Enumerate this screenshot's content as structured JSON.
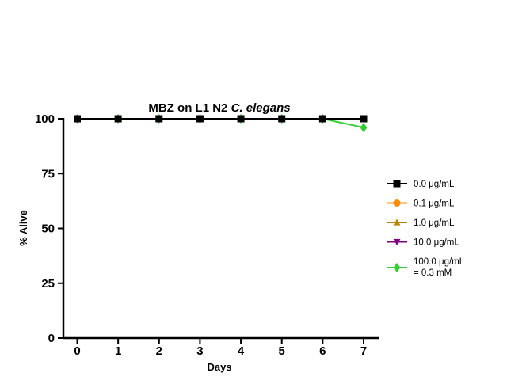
{
  "chart_data": {
    "type": "line",
    "title": "MBZ on L1 N2",
    "title_italic": "C. elegans",
    "xlabel": "Days",
    "ylabel": "% Alive",
    "x": [
      0,
      1,
      2,
      3,
      4,
      5,
      6,
      7
    ],
    "xlim": [
      0,
      7
    ],
    "ylim": [
      0,
      100
    ],
    "yticks": [
      0,
      25,
      50,
      75,
      100
    ],
    "grid": false,
    "legend_position": "right",
    "series": [
      {
        "name": "0.0 μg/mL",
        "color": "#000000",
        "marker": "square",
        "values": [
          100,
          100,
          100,
          100,
          100,
          100,
          100,
          100
        ]
      },
      {
        "name": "0.1 μg/mL",
        "color": "#ff8c00",
        "marker": "circle",
        "values": [
          100,
          100,
          100,
          100,
          100,
          100,
          100,
          100
        ]
      },
      {
        "name": "1.0 μg/mL",
        "color": "#b8860b",
        "marker": "triangle",
        "values": [
          100,
          100,
          100,
          100,
          100,
          100,
          100,
          100
        ]
      },
      {
        "name": "10.0 μg/mL",
        "color": "#800080",
        "marker": "triangle-down",
        "values": [
          100,
          100,
          100,
          100,
          100,
          100,
          100,
          100
        ]
      },
      {
        "name": "100.0 μg/mL",
        "name_line2": "= 0.3 mM",
        "color": "#32cd32",
        "marker": "diamond",
        "values": [
          100,
          100,
          100,
          100,
          100,
          100,
          100,
          96
        ]
      }
    ]
  }
}
